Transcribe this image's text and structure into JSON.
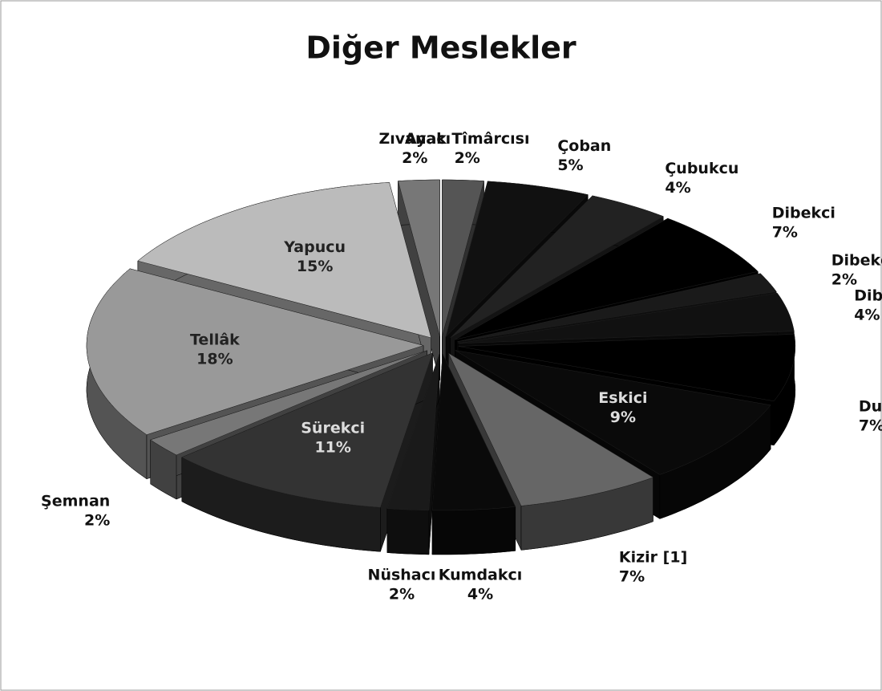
{
  "chart_data": {
    "type": "pie",
    "title": "Diğer Meslekler",
    "categories": [
      "Ayak Tîmârcısı",
      "Çoban",
      "Çubukcu",
      "Dibekci",
      "Dibekci Halîfesi",
      "Dibekci Kalfası",
      "Duhâncı",
      "Eskici",
      "Kizir [1]",
      "Kumdakcı",
      "Nüshacı",
      "Sürekci",
      "Şemnan",
      "Tellâk",
      "Yapucu",
      "Zıvanacı"
    ],
    "values": [
      2,
      5,
      4,
      7,
      2,
      4,
      7,
      9,
      7,
      4,
      2,
      11,
      2,
      18,
      15,
      2
    ],
    "value_labels": [
      "2%",
      "5%",
      "4%",
      "7%",
      "2%",
      "4%",
      "7%",
      "9%",
      "7%",
      "4%",
      "2%",
      "11%",
      "2%",
      "18%",
      "15%",
      "2%"
    ],
    "colors": [
      "#555555",
      "#111111",
      "#222222",
      "#000000",
      "#1a1a1a",
      "#111111",
      "#000000",
      "#0a0a0a",
      "#666666",
      "#0a0a0a",
      "#1a1a1a",
      "#333333",
      "#777777",
      "#999999",
      "#bbbbbb",
      "#777777"
    ]
  }
}
